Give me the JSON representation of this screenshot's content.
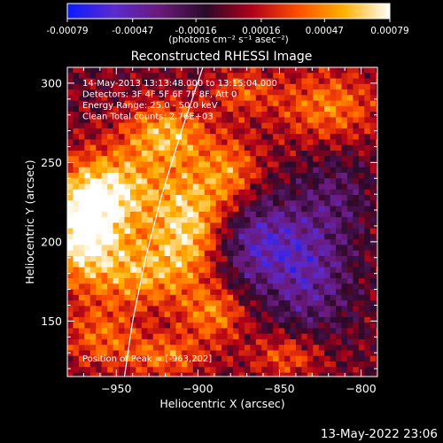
{
  "colorbar": {
    "ticks": [
      "-0.00079",
      "-0.00047",
      "-0.00016",
      "0.00016",
      "0.00047",
      "0.00079"
    ],
    "tick_values": [
      -0.00079,
      -0.00047,
      -0.00016,
      0.00016,
      0.00047,
      0.00079
    ],
    "range": [
      -0.00079,
      0.00079
    ],
    "units": "(photons cm⁻² s⁻¹ asec⁻²)",
    "colormap": [
      "#0a1aff",
      "#5a2ad0",
      "#6a1a7a",
      "#2a0a2a",
      "#b0001a",
      "#ff4d00",
      "#ffb000",
      "#ffffff"
    ]
  },
  "chart_data": {
    "type": "heatmap",
    "title": "Reconstructed RHESSI Image",
    "xlabel": "Heliocentric X (arcsec)",
    "ylabel": "Heliocentric Y (arcsec)",
    "xlim": [
      -980,
      -790
    ],
    "ylim": [
      115,
      310
    ],
    "xticks": [
      -950,
      -900,
      -850,
      -800
    ],
    "yticks": [
      150,
      200,
      250,
      300
    ],
    "xtick_labels": [
      "−950",
      "−900",
      "−850",
      "−800"
    ],
    "ytick_labels": [
      "150",
      "200",
      "250",
      "300"
    ],
    "annotations": [
      "14-May-2013 13:13:48.000 to 13:15:04.000",
      "Detectors: 3F 4F 5F 6F 7F 8F, Att 0",
      "Energy Range: 25.0 - 50.0 keV",
      "Clean     Total counts: 2.76E+03"
    ],
    "peak_label": "Position of Peak = [-963,202]",
    "peak_position": [
      -963,
      202
    ],
    "limb_points": [
      [
        -945,
        115
      ],
      [
        -940,
        150
      ],
      [
        -932,
        190
      ],
      [
        -922,
        230
      ],
      [
        -910,
        270
      ],
      [
        -897,
        310
      ]
    ],
    "sources": [
      {
        "x": -970,
        "y": 205,
        "a": 1.0,
        "sx": 16,
        "sy": 22
      },
      {
        "x": -952,
        "y": 232,
        "a": 0.8,
        "sx": 22,
        "sy": 18
      },
      {
        "x": -905,
        "y": 210,
        "a": 0.85,
        "sx": 16,
        "sy": 24
      },
      {
        "x": -920,
        "y": 268,
        "a": 0.7,
        "sx": 18,
        "sy": 14
      },
      {
        "x": -935,
        "y": 180,
        "a": 0.6,
        "sx": 20,
        "sy": 16
      },
      {
        "x": -880,
        "y": 243,
        "a": 0.55,
        "sx": 14,
        "sy": 16
      },
      {
        "x": -890,
        "y": 155,
        "a": 0.55,
        "sx": 14,
        "sy": 12
      },
      {
        "x": -820,
        "y": 285,
        "a": 0.55,
        "sx": 22,
        "sy": 16
      },
      {
        "x": -960,
        "y": 140,
        "a": 0.45,
        "sx": 16,
        "sy": 14
      },
      {
        "x": -920,
        "y": 128,
        "a": 0.5,
        "sx": 18,
        "sy": 10
      },
      {
        "x": -845,
        "y": 128,
        "a": 0.45,
        "sx": 16,
        "sy": 10
      },
      {
        "x": -872,
        "y": 295,
        "a": 0.4,
        "sx": 14,
        "sy": 10
      },
      {
        "x": -862,
        "y": 200,
        "a": -0.6,
        "sx": 22,
        "sy": 22
      },
      {
        "x": -830,
        "y": 175,
        "a": -0.45,
        "sx": 18,
        "sy": 26
      },
      {
        "x": -815,
        "y": 230,
        "a": -0.3,
        "sx": 14,
        "sy": 20
      }
    ]
  },
  "footer": {
    "date": "13-May-2022 23:06"
  }
}
